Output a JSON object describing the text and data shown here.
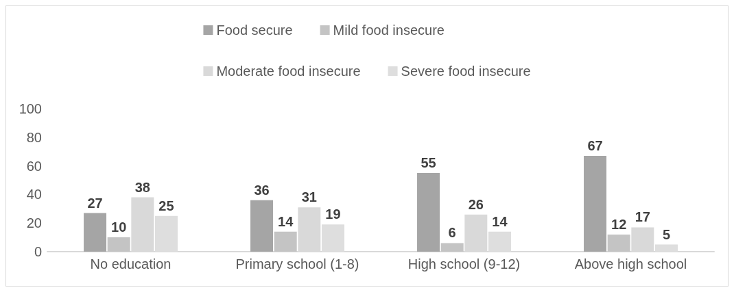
{
  "chart_data": {
    "type": "bar",
    "categories": [
      "No education",
      "Primary school (1-8)",
      "High school (9-12)",
      "Above high school"
    ],
    "series": [
      {
        "name": "Food secure",
        "color": "#a5a5a5",
        "values": [
          27,
          36,
          55,
          67
        ]
      },
      {
        "name": "Mild food insecure",
        "color": "#c4c4c4",
        "values": [
          10,
          14,
          6,
          12
        ]
      },
      {
        "name": "Moderate food insecure",
        "color": "#d9d9d9",
        "values": [
          38,
          31,
          26,
          17
        ]
      },
      {
        "name": "Severe food insecure",
        "color": "#dedede",
        "values": [
          25,
          19,
          14,
          5
        ]
      }
    ],
    "ylim": [
      0,
      100
    ],
    "yticks": [
      0,
      20,
      40,
      60,
      80,
      100
    ],
    "grid": false,
    "legend": "top",
    "data_labels": true
  }
}
